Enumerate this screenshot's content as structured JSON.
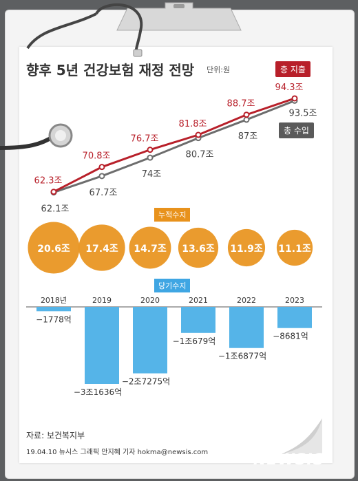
{
  "title": "향후 5년 건강보험 재정 전망",
  "unit": "단위:원",
  "legend": {
    "expense": "총 지출",
    "income": "총 수입"
  },
  "labels": {
    "cumulative": "누적수지",
    "annual": "당기수지"
  },
  "source": "자료: 보건복지부",
  "credit": "19.04.10 뉴시스 그래픽 안지혜 기자 hokma@newsis.com",
  "logo": "NEWSIS",
  "colors": {
    "expense": "#b8202a",
    "income": "#6d6d6d",
    "cumulative": "#e8921c",
    "annual": "#55b4e8"
  },
  "chart_data": [
    {
      "type": "line",
      "x": [
        "2018년",
        "2019",
        "2020",
        "2021",
        "2022",
        "2023"
      ],
      "series": [
        {
          "name": "총 지출",
          "values": [
            62.3,
            70.8,
            76.7,
            81.8,
            88.7,
            94.3
          ],
          "labels": [
            "62.3조",
            "70.8조",
            "76.7조",
            "81.8조",
            "88.7조",
            "94.3조"
          ]
        },
        {
          "name": "총 수입",
          "values": [
            62.1,
            67.7,
            74,
            80.7,
            87,
            93.5
          ],
          "labels": [
            "62.1조",
            "67.7조",
            "74조",
            "80.7조",
            "87조",
            "93.5조"
          ]
        }
      ]
    },
    {
      "type": "scatter",
      "title": "누적수지",
      "x": [
        "2018년",
        "2019",
        "2020",
        "2021",
        "2022",
        "2023"
      ],
      "values": [
        20.6,
        17.4,
        14.7,
        13.6,
        11.9,
        11.1
      ],
      "labels": [
        "20.6조",
        "17.4조",
        "14.7조",
        "13.6조",
        "11.9조",
        "11.1조"
      ]
    },
    {
      "type": "bar",
      "title": "당기수지",
      "categories": [
        "2018년",
        "2019",
        "2020",
        "2021",
        "2022",
        "2023"
      ],
      "values": [
        -1778,
        -31636,
        -27275,
        -10679,
        -16877,
        -8681
      ],
      "labels": [
        "−1778억",
        "−3조1636억",
        "−2조7275억",
        "−1조679억",
        "−1조6877억",
        "−8681억"
      ]
    }
  ]
}
